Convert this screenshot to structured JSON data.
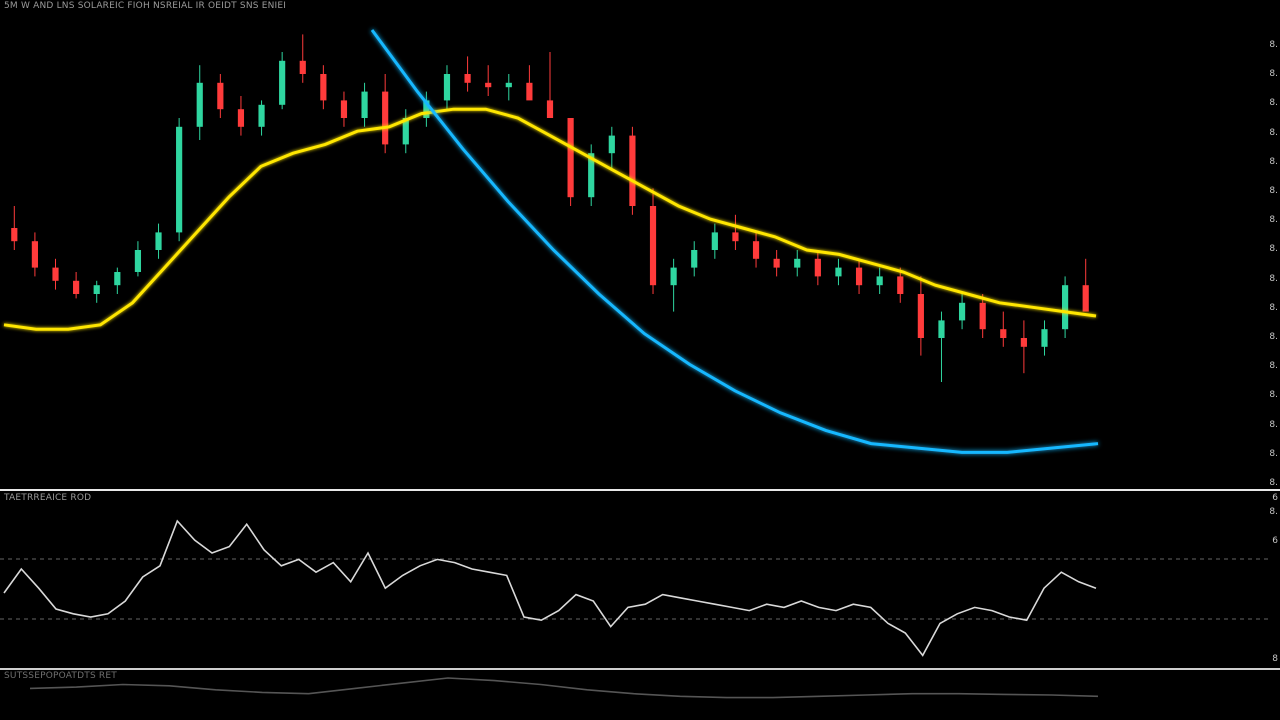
{
  "colors": {
    "background": "#000000",
    "up": "#2fd6a0",
    "down": "#ff3b3b",
    "ma_yellow": "#ffe600",
    "arc_blue": "#19b8ff",
    "oscillator": "#d9d9d9",
    "lower_line": "#555555"
  },
  "headers": {
    "main": "5M W AND LNS  SOLAREIC  FIOH  NSREIAL  IR OEIDT  SNS  ENIEI",
    "oscillator": "TAETRREAICE  ROD",
    "lower": "SUTSSEPOPOATDTS  RET"
  },
  "right_axis": {
    "labels": [
      "8.",
      "8.",
      "8.",
      "8.",
      "8.",
      "8.",
      "8.",
      "8.",
      "8.",
      "8.",
      "8.",
      "8.",
      "8.",
      "8.",
      "8.",
      "8.",
      "8.",
      "6"
    ],
    "osc_top": "6",
    "osc_bottom": "8"
  },
  "chart_data": [
    {
      "type": "candlestick",
      "title": "",
      "price_range": [
        0,
        100
      ],
      "ohlc_values": [
        [
          55,
          60,
          50,
          52
        ],
        [
          52,
          54,
          44,
          46
        ],
        [
          46,
          48,
          41,
          43
        ],
        [
          43,
          45,
          39,
          40
        ],
        [
          40,
          43,
          38,
          42
        ],
        [
          42,
          46,
          40,
          45
        ],
        [
          45,
          52,
          44,
          50
        ],
        [
          50,
          56,
          48,
          54
        ],
        [
          54,
          80,
          52,
          78
        ],
        [
          78,
          92,
          75,
          88
        ],
        [
          88,
          90,
          80,
          82
        ],
        [
          82,
          85,
          76,
          78
        ],
        [
          78,
          84,
          76,
          83
        ],
        [
          83,
          95,
          82,
          93
        ],
        [
          93,
          99,
          88,
          90
        ],
        [
          90,
          92,
          82,
          84
        ],
        [
          84,
          86,
          78,
          80
        ],
        [
          80,
          88,
          78,
          86
        ],
        [
          86,
          90,
          72,
          74
        ],
        [
          74,
          82,
          72,
          80
        ],
        [
          80,
          86,
          78,
          84
        ],
        [
          84,
          92,
          82,
          90
        ],
        [
          90,
          94,
          86,
          88
        ],
        [
          88,
          92,
          85,
          87
        ],
        [
          87,
          90,
          84,
          88
        ],
        [
          88,
          92,
          86,
          84
        ],
        [
          84,
          95,
          82,
          80
        ],
        [
          80,
          72,
          60,
          62
        ],
        [
          62,
          74,
          60,
          72
        ],
        [
          72,
          78,
          68,
          76
        ],
        [
          76,
          78,
          58,
          60
        ],
        [
          60,
          64,
          40,
          42
        ],
        [
          42,
          48,
          36,
          46
        ],
        [
          46,
          52,
          44,
          50
        ],
        [
          50,
          56,
          48,
          54
        ],
        [
          54,
          58,
          50,
          52
        ],
        [
          52,
          54,
          46,
          48
        ],
        [
          48,
          50,
          44,
          46
        ],
        [
          46,
          50,
          44,
          48
        ],
        [
          48,
          50,
          42,
          44
        ],
        [
          44,
          48,
          42,
          46
        ],
        [
          46,
          48,
          40,
          42
        ],
        [
          42,
          46,
          40,
          44
        ],
        [
          44,
          46,
          38,
          40
        ],
        [
          40,
          44,
          26,
          30
        ],
        [
          30,
          36,
          20,
          34
        ],
        [
          34,
          40,
          32,
          38
        ],
        [
          38,
          40,
          30,
          32
        ],
        [
          32,
          36,
          28,
          30
        ],
        [
          30,
          34,
          22,
          28
        ],
        [
          28,
          34,
          26,
          32
        ],
        [
          32,
          44,
          30,
          42
        ],
        [
          42,
          48,
          40,
          36
        ]
      ],
      "ma_yellow": [
        33,
        32,
        32,
        33,
        38,
        46,
        54,
        62,
        69,
        72,
        74,
        77,
        78,
        81,
        82,
        82,
        80,
        76,
        72,
        68,
        64,
        60,
        57,
        55,
        53,
        50,
        49,
        47,
        45,
        42,
        40,
        38,
        37,
        36,
        35
      ],
      "arc_blue": [
        100,
        86,
        73,
        61,
        50,
        40,
        31,
        24,
        18,
        13,
        9,
        6,
        5,
        4,
        4,
        5,
        6
      ]
    },
    {
      "type": "line",
      "title": "",
      "ylim": [
        0,
        100
      ],
      "reference_levels": [
        70,
        30
      ],
      "values": [
        45,
        60,
        48,
        35,
        32,
        30,
        32,
        40,
        55,
        62,
        90,
        78,
        70,
        74,
        88,
        72,
        62,
        66,
        58,
        64,
        52,
        70,
        48,
        56,
        62,
        66,
        64,
        60,
        58,
        56,
        30,
        28,
        34,
        44,
        40,
        24,
        36,
        38,
        44,
        42,
        40,
        38,
        36,
        34,
        38,
        36,
        40,
        36,
        34,
        38,
        36,
        26,
        20,
        6,
        26,
        32,
        36,
        34,
        30,
        28,
        48,
        58,
        52,
        48
      ]
    },
    {
      "type": "line",
      "title": "",
      "values": [
        42,
        44,
        48,
        46,
        40,
        36,
        34,
        42,
        50,
        58,
        54,
        48,
        40,
        34,
        30,
        28,
        28,
        30,
        32,
        34,
        34,
        33,
        32,
        30
      ]
    }
  ]
}
